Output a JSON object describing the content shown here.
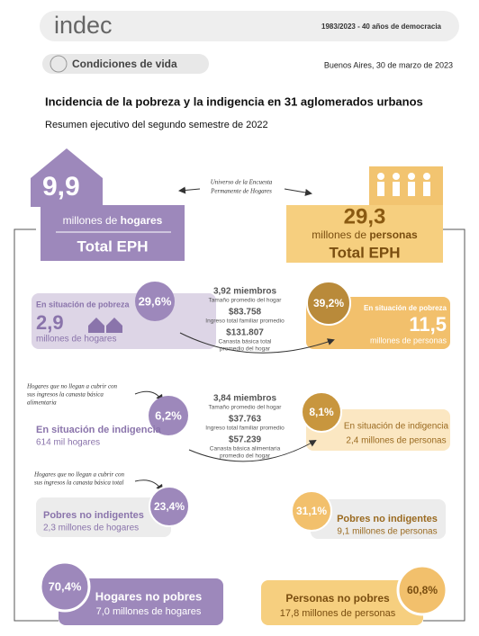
{
  "header": {
    "logo": "indec",
    "tagline": "1983/2023 - 40 años de democracia",
    "section": "Condiciones de vida",
    "date": "Buenos Aires, 30 de marzo de 2023"
  },
  "title": "Incidencia de la pobreza y la indigencia en 31 aglomerados urbanos",
  "subtitle": "Resumen ejecutivo del segundo semestre de 2022",
  "universe_note": [
    "Universo de la Encuesta",
    "Permanente de Hogares"
  ],
  "hogares": {
    "value": "9,9",
    "unit_pre": "millones de",
    "unit_bold": "hogares",
    "label": "Total EPH",
    "pobreza": {
      "pct": "29,6%",
      "label": "En situación de pobreza",
      "value": "2,9",
      "unit": "millones de hogares"
    },
    "indigencia_note": [
      "Hogares que no llegan a cubrir con",
      "sus ingresos la canasta básica",
      "alimentaria"
    ],
    "indigencia": {
      "pct": "6,2%",
      "label": "En situación de indigencia",
      "unit": "614 mil hogares"
    },
    "no_indigentes_note": [
      "Hogares que no llegan a cubrir con",
      "sus ingresos la canasta básica total"
    ],
    "no_indigentes": {
      "pct": "23,4%",
      "label": "Pobres no indigentes",
      "unit": "2,3 millones de hogares"
    },
    "no_pobres": {
      "pct": "70,4%",
      "label": "Hogares no pobres",
      "unit": "7,0 millones de hogares"
    }
  },
  "personas": {
    "value": "29,3",
    "unit_pre": "millones de",
    "unit_bold": "personas",
    "label": "Total EPH",
    "pobreza": {
      "pct": "39,2%",
      "label": "En situación de pobreza",
      "value": "11,5",
      "unit": "millones de personas"
    },
    "indigencia": {
      "pct": "8,1%",
      "label": "En situación de indigencia",
      "unit": "2,4 millones de personas"
    },
    "no_indigentes": {
      "pct": "31,1%",
      "label": "Pobres no indigentes",
      "unit": "9,1 millones de personas"
    },
    "no_pobres": {
      "pct": "60,8%",
      "label": "Personas no pobres",
      "unit": "17,8 millones de personas"
    }
  },
  "pobreza_stats": [
    {
      "value": "3,92 miembros",
      "label": [
        "Tamaño promedio del hogar"
      ]
    },
    {
      "value": "$83.758",
      "label": [
        "Ingreso total familiar promedio"
      ]
    },
    {
      "value": "$131.807",
      "label": [
        "Canasta básica total",
        "promedio del hogar"
      ]
    }
  ],
  "indigencia_stats": [
    {
      "value": "3,84 miembros",
      "label": [
        "Tamaño promedio del hogar"
      ]
    },
    {
      "value": "$37.763",
      "label": [
        "Ingreso total familiar promedio"
      ]
    },
    {
      "value": "$57.239",
      "label": [
        "Canasta básica alimentaria",
        "promedio del hogar"
      ]
    }
  ]
}
